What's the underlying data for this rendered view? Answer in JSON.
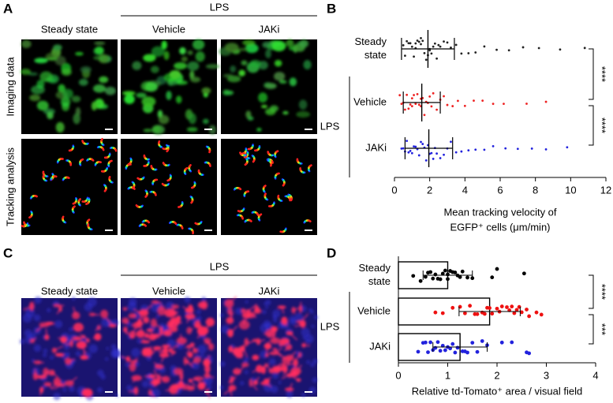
{
  "panels": {
    "A": {
      "label": "A",
      "group": "LPS",
      "conditions": [
        "Steady state",
        "Vehicle",
        "JAKi"
      ],
      "rows": [
        "Imaging data",
        "Tracking analysis"
      ]
    },
    "C": {
      "label": "C",
      "group": "LPS",
      "conditions": [
        "Steady state",
        "Vehicle",
        "JAKi"
      ]
    }
  },
  "chart_data": [
    {
      "label": "B",
      "type": "strip",
      "categories": [
        "Steady state",
        "Vehicle",
        "JAKi"
      ],
      "group_label": "LPS",
      "xlabel": [
        "Mean tracking velocity of",
        "EGFP⁺ cells (μm/min)"
      ],
      "xlim": [
        0,
        12
      ],
      "xticks": [
        0,
        2,
        4,
        6,
        8,
        10,
        12
      ],
      "significance": [
        "****",
        "****"
      ],
      "series": [
        {
          "color": "#222222",
          "mean": 1.9,
          "sd": 1.5,
          "values": [
            0.5,
            0.6,
            0.7,
            0.8,
            0.9,
            1.0,
            1.1,
            1.2,
            1.2,
            1.3,
            1.4,
            1.5,
            1.5,
            1.6,
            1.7,
            1.8,
            1.9,
            2.0,
            2.0,
            2.1,
            2.2,
            2.3,
            2.4,
            2.5,
            2.6,
            2.8,
            3.0,
            3.2,
            3.5,
            3.8,
            4.2,
            4.6,
            5.1,
            5.8,
            6.5,
            7.3,
            8.2,
            9.4,
            10.8
          ]
        },
        {
          "color": "#ee2222",
          "mean": 1.55,
          "sd": 1.05,
          "values": [
            0.3,
            0.4,
            0.5,
            0.6,
            0.7,
            0.8,
            0.9,
            1.0,
            1.0,
            1.1,
            1.2,
            1.3,
            1.4,
            1.5,
            1.5,
            1.6,
            1.7,
            1.8,
            1.9,
            2.0,
            2.1,
            2.2,
            2.4,
            2.6,
            2.8,
            3.0,
            3.3,
            3.6,
            4.0,
            4.5,
            5.0,
            5.6,
            6.2,
            7.5,
            8.6
          ]
        },
        {
          "color": "#2222dd",
          "mean": 1.95,
          "sd": 1.35,
          "values": [
            0.4,
            0.5,
            0.6,
            0.7,
            0.8,
            0.9,
            1.0,
            1.1,
            1.2,
            1.3,
            1.4,
            1.5,
            1.6,
            1.7,
            1.8,
            1.9,
            2.0,
            2.1,
            2.2,
            2.3,
            2.4,
            2.6,
            2.8,
            3.0,
            3.2,
            3.5,
            3.8,
            4.2,
            4.6,
            5.1,
            5.6,
            6.3,
            7.0,
            7.8,
            8.6,
            9.8
          ]
        }
      ]
    },
    {
      "label": "D",
      "type": "bar",
      "categories": [
        "Steady state",
        "Vehicle",
        "JAKi"
      ],
      "group_label": "LPS",
      "xlabel": [
        "Relative td-Tomato⁺ area / visual field"
      ],
      "xlim": [
        0,
        4
      ],
      "xticks": [
        0,
        1,
        2,
        3,
        4
      ],
      "significance": [
        "****",
        "***"
      ],
      "values": [
        1.0,
        1.85,
        1.25
      ],
      "sd": [
        0.5,
        0.62,
        0.55
      ],
      "color": "#ffffff",
      "points": [
        {
          "color": "#000000",
          "values": [
            0.3,
            0.45,
            0.55,
            0.6,
            0.65,
            0.7,
            0.75,
            0.8,
            0.85,
            0.9,
            0.95,
            1.0,
            1.0,
            1.05,
            1.1,
            1.15,
            1.2,
            1.25,
            1.3,
            1.4,
            1.5,
            1.9,
            2.0,
            2.55
          ]
        },
        {
          "color": "#ee1111",
          "values": [
            0.75,
            0.9,
            1.1,
            1.25,
            1.35,
            1.45,
            1.55,
            1.6,
            1.7,
            1.75,
            1.8,
            1.85,
            1.9,
            2.0,
            2.05,
            2.1,
            2.2,
            2.25,
            2.3,
            2.35,
            2.4,
            2.45,
            2.5,
            2.6,
            2.65,
            2.8,
            2.9
          ]
        },
        {
          "color": "#2222dd",
          "values": [
            0.4,
            0.5,
            0.55,
            0.6,
            0.65,
            0.7,
            0.75,
            0.8,
            0.85,
            0.9,
            0.95,
            1.0,
            1.05,
            1.1,
            1.15,
            1.2,
            1.3,
            1.35,
            1.4,
            1.5,
            1.6,
            1.7,
            1.8,
            2.1,
            2.3,
            2.6,
            2.65
          ]
        }
      ]
    }
  ]
}
